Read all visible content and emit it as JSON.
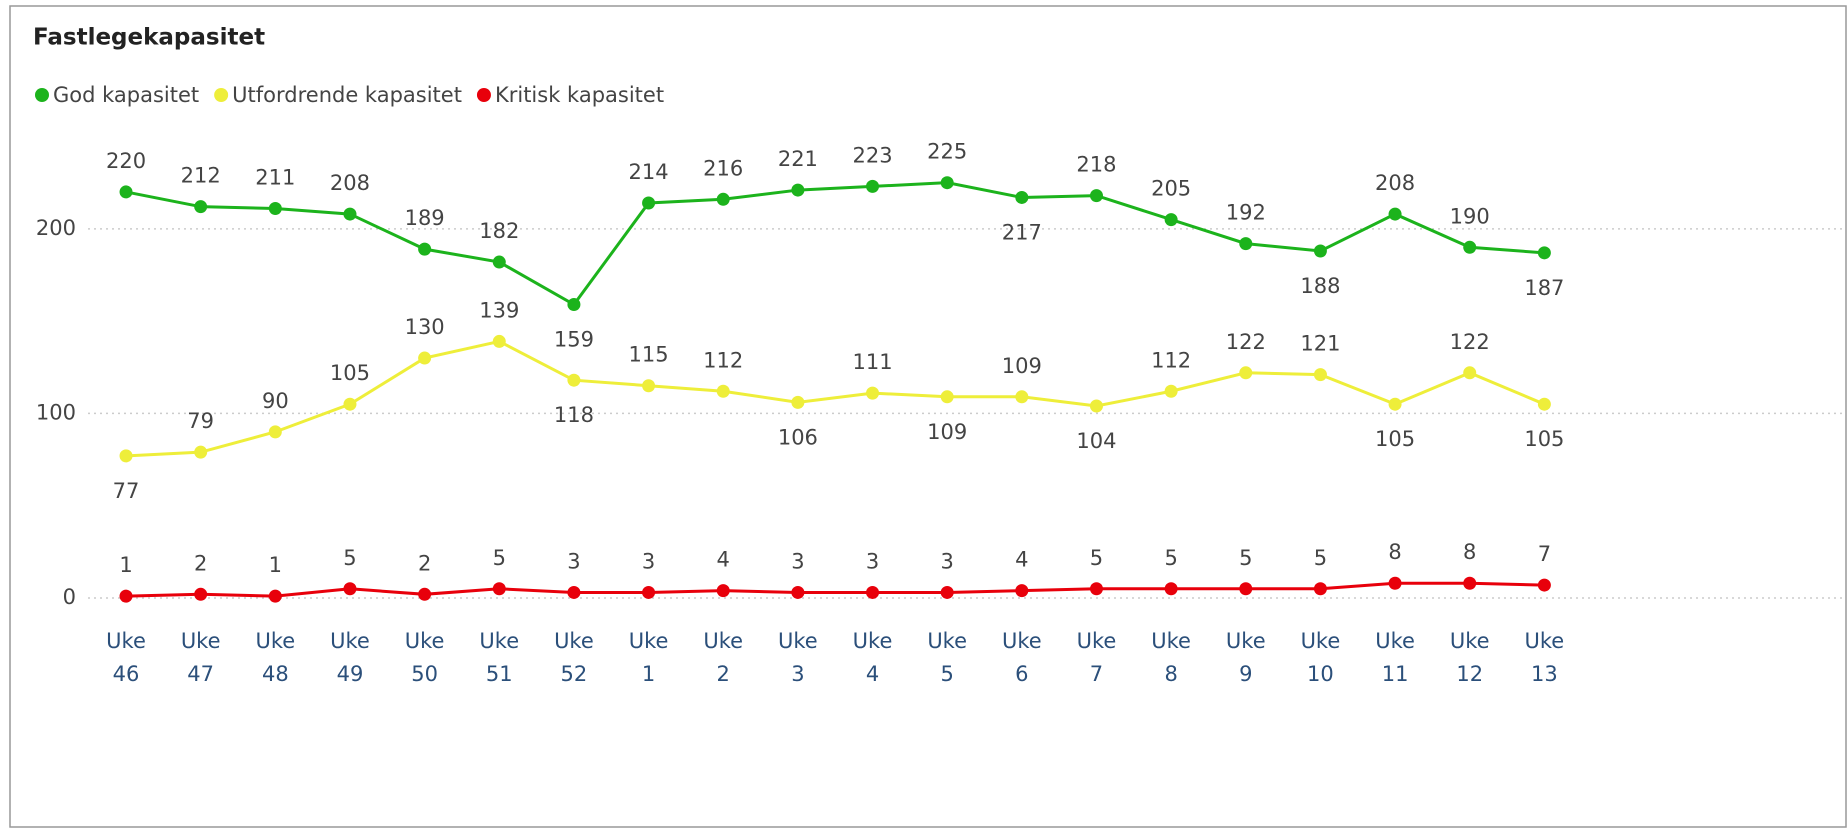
{
  "chart_data": {
    "type": "line",
    "title": "Fastlegekapasitet",
    "categories": [
      "Uke 46",
      "Uke 47",
      "Uke 48",
      "Uke 49",
      "Uke 50",
      "Uke 51",
      "Uke 52",
      "Uke 1",
      "Uke 2",
      "Uke 3",
      "Uke 4",
      "Uke 5",
      "Uke 6",
      "Uke 7",
      "Uke 8",
      "Uke 9",
      "Uke 10",
      "Uke 11",
      "Uke 12",
      "Uke 13"
    ],
    "series": [
      {
        "name": "God kapasitet",
        "color": "#1cb31c",
        "values": [
          220,
          212,
          211,
          208,
          189,
          182,
          159,
          214,
          216,
          221,
          223,
          225,
          217,
          218,
          205,
          192,
          188,
          208,
          190,
          187
        ]
      },
      {
        "name": "Utfordrende kapasitet",
        "color": "#eeee3a",
        "values": [
          77,
          79,
          90,
          105,
          130,
          139,
          118,
          115,
          112,
          106,
          111,
          109,
          109,
          104,
          112,
          122,
          121,
          105,
          122,
          105
        ]
      },
      {
        "name": "Kritisk kapasitet",
        "color": "#e8000b",
        "values": [
          1,
          2,
          1,
          5,
          2,
          5,
          3,
          3,
          4,
          3,
          3,
          3,
          4,
          5,
          5,
          5,
          5,
          8,
          8,
          7
        ]
      }
    ],
    "ylim": [
      0,
      240
    ],
    "yticks": [
      0,
      100,
      200
    ],
    "grid": true,
    "legend": "top-left"
  }
}
